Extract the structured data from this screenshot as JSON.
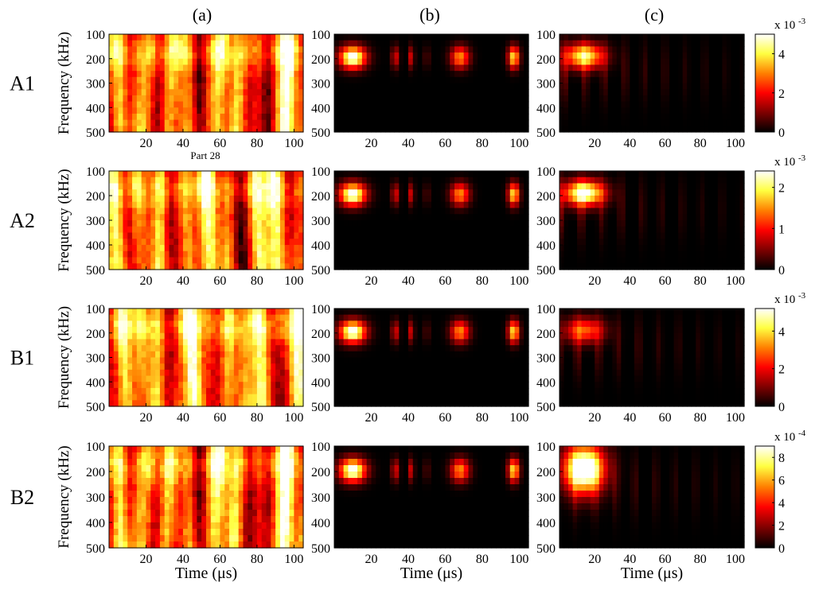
{
  "chart_data": {
    "type": "heatmap",
    "column_labels": [
      "(a)",
      "(b)",
      "(c)"
    ],
    "row_labels": [
      "A1",
      "A2",
      "B1",
      "B2"
    ],
    "ylabel": "Frequency (kHz)",
    "xlabel": "Time (μs)",
    "x_ticks": [
      20,
      40,
      60,
      80,
      100
    ],
    "y_ticks": [
      100,
      200,
      300,
      400,
      500
    ],
    "xlim": [
      0,
      105
    ],
    "ylim": [
      100,
      500
    ],
    "stray_label": "Part 28",
    "colormap": "hot",
    "colors": [
      "#000000",
      "#7f0000",
      "#ff0000",
      "#ff8000",
      "#ffff40",
      "#ffffff"
    ],
    "colorbars": [
      {
        "row": "A1",
        "exponent_label": "x 10",
        "exponent": "-3",
        "ticks": [
          0,
          2,
          4
        ],
        "max": 5
      },
      {
        "row": "A2",
        "exponent_label": "x 10",
        "exponent": "-3",
        "ticks": [
          0,
          1,
          2
        ],
        "max": 2.4
      },
      {
        "row": "B1",
        "exponent_label": "x 10",
        "exponent": "-3",
        "ticks": [
          0,
          2,
          4
        ],
        "max": 5.2
      },
      {
        "row": "B2",
        "exponent_label": "x 10",
        "exponent": "-4",
        "ticks": [
          0,
          2,
          4,
          6,
          8
        ],
        "max": 9
      }
    ]
  }
}
